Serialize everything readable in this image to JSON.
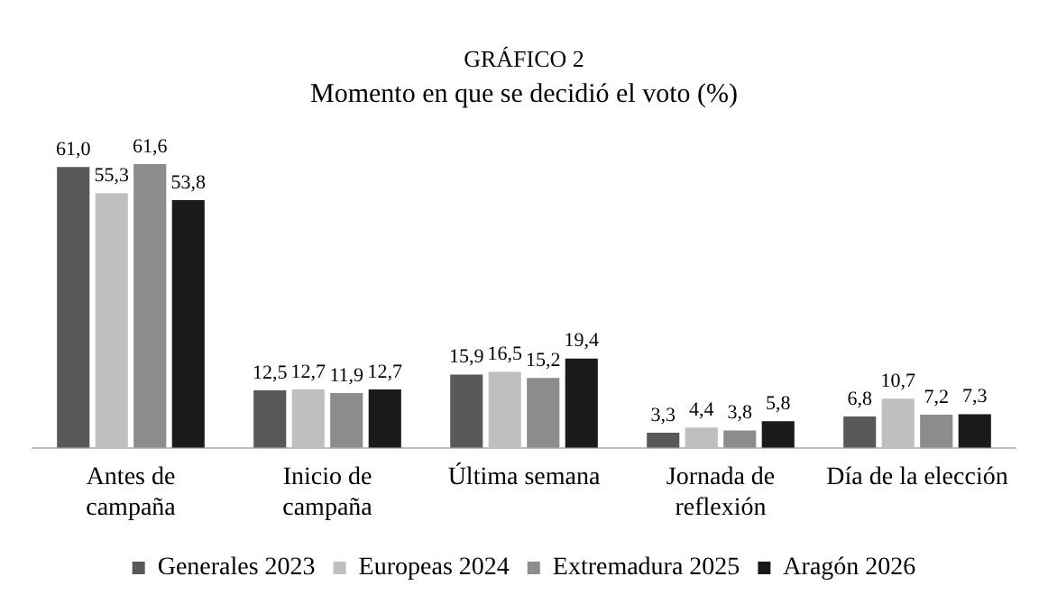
{
  "chart_data": {
    "type": "bar",
    "title": "GRÁFICO 2",
    "subtitle": "Momento en que se decidió el voto (%)",
    "categories": [
      "Antes de\ncampaña",
      "Inicio de\ncampaña",
      "Última semana",
      "Jornada de\nreflexión",
      "Día de la elección"
    ],
    "series": [
      {
        "name": "Generales 2023",
        "color": "#595959",
        "values": [
          61.0,
          12.5,
          15.9,
          3.3,
          6.8
        ],
        "value_labels": [
          "61,0",
          "12,5",
          "15,9",
          "3,3",
          "6,8"
        ]
      },
      {
        "name": "Europeas 2024",
        "color": "#bfbfbf",
        "values": [
          55.3,
          12.7,
          16.5,
          4.4,
          10.7
        ],
        "value_labels": [
          "55,3",
          "12,7",
          "16,5",
          "4,4",
          "10,7"
        ]
      },
      {
        "name": "Extremadura 2025",
        "color": "#8c8c8c",
        "values": [
          61.6,
          11.9,
          15.2,
          3.8,
          7.2
        ],
        "value_labels": [
          "61,6",
          "11,9",
          "15,2",
          "3,8",
          "7,2"
        ]
      },
      {
        "name": "Aragón 2026",
        "color": "#1a1a1a",
        "values": [
          53.8,
          12.7,
          19.4,
          5.8,
          7.3
        ],
        "value_labels": [
          "53,8",
          "12,7",
          "19,4",
          "5,8",
          "7,3"
        ]
      }
    ],
    "grid": false,
    "legend": "bottom",
    "tick_labels": "x"
  }
}
